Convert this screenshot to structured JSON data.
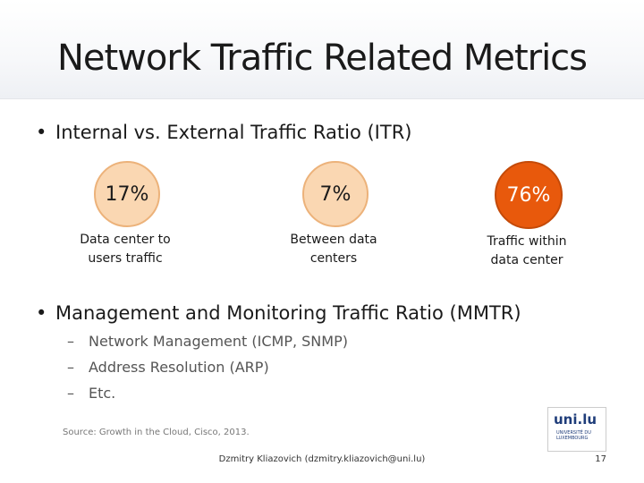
{
  "title": "Network Traffic Related Metrics",
  "bullets": [
    {
      "text": "Internal vs. External Traffic Ratio (ITR)"
    },
    {
      "text": "Management and Monitoring Traffic Ratio (MMTR)"
    }
  ],
  "itr_items": [
    {
      "value": "17%",
      "caption_line1": "Data center to",
      "caption_line2": "users traffic"
    },
    {
      "value": "7%",
      "caption_line1": "Between data",
      "caption_line2": "centers"
    },
    {
      "value": "76%",
      "caption_line1": "Traffic within",
      "caption_line2": "data center"
    }
  ],
  "mmtr_items": [
    {
      "text": "Network Management (ICMP, SNMP)"
    },
    {
      "text": "Address Resolution (ARP)"
    },
    {
      "text": "Etc."
    }
  ],
  "source": "Source: Growth in the Cloud, Cisco, 2013.",
  "footer": "Dzmitry Kliazovich (dzmitry.kliazovich@uni.lu)",
  "page_number": "17",
  "logo": {
    "brand": "uni.lu",
    "line1": "UNIVERSITÉ DU",
    "line2": "LUXEMBOURG"
  },
  "colors": {
    "circle_light": "#fad7b2",
    "circle_dark": "#e8590c"
  }
}
